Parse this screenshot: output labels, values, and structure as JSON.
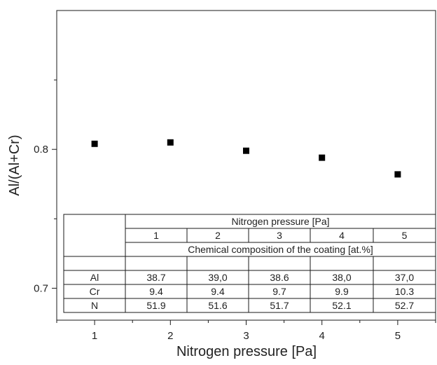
{
  "chart_data": {
    "type": "scatter",
    "title": "",
    "xlabel": "Nitrogen pressure [Pa]",
    "ylabel": "Al/(Al+Cr)",
    "xlim": [
      0.5,
      5.5
    ],
    "ylim": [
      0.677,
      0.9
    ],
    "x_ticks": [
      "1",
      "2",
      "3",
      "4",
      "5"
    ],
    "y_ticks": [
      "0.7",
      "0.8"
    ],
    "y_tick_values": [
      0.7,
      0.8
    ],
    "grid": false,
    "marker": "square",
    "marker_color": "#000000",
    "series": [
      {
        "x": [
          1,
          2,
          3,
          4,
          5
        ],
        "y": [
          0.804,
          0.805,
          0.799,
          0.794,
          0.782
        ]
      }
    ]
  },
  "table": {
    "header_title": "Nitrogen pressure [Pa]",
    "pressures": [
      "1",
      "2",
      "3",
      "4",
      "5"
    ],
    "subheader": "Chemical composition of the coating [at.%]",
    "rows": [
      {
        "element": "Al",
        "values": [
          "38.7",
          "39,0",
          "38.6",
          "38,0",
          "37,0"
        ]
      },
      {
        "element": "Cr",
        "values": [
          "9.4",
          "9.4",
          "9.7",
          "9.9",
          "10.3"
        ]
      },
      {
        "element": "N",
        "values": [
          "51.9",
          "51.6",
          "51.7",
          "52.1",
          "52.7"
        ]
      }
    ]
  }
}
